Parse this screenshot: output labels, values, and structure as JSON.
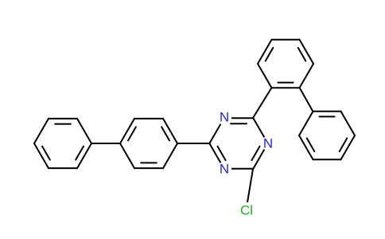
{
  "atoms": [
    {
      "label": "N"
    },
    {
      "label": "N"
    },
    {
      "label": "N"
    },
    {
      "label": "Cl"
    }
  ]
}
